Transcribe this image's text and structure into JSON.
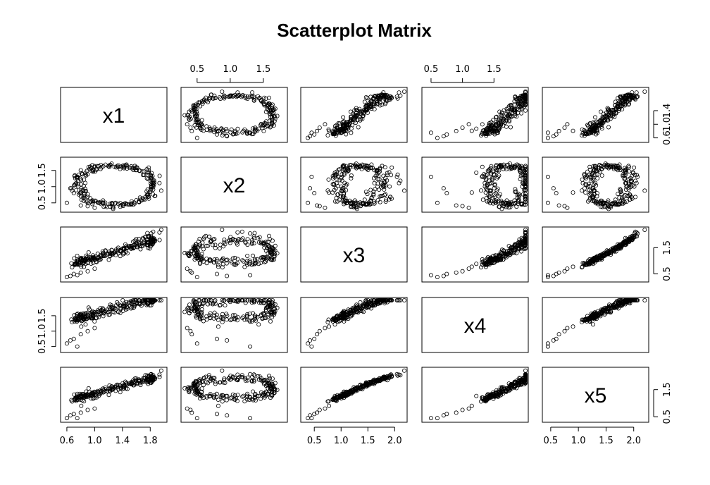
{
  "chart_data": {
    "type": "scatter",
    "title": "Scatterplot Matrix",
    "variables": [
      "x1",
      "x2",
      "x3",
      "x4",
      "x5"
    ],
    "ranges": {
      "x1": [
        0.55,
        2.0
      ],
      "x2": [
        0.3,
        1.82
      ],
      "x3": [
        0.3,
        2.18
      ],
      "x4": [
        0.4,
        2.0
      ],
      "x5": [
        0.4,
        2.22
      ]
    },
    "ticks": {
      "x1": {
        "values": [
          0.6,
          1.0,
          1.4,
          1.8
        ],
        "labels": [
          "0.6",
          "1.0",
          "1.4",
          "1.8"
        ],
        "side_values": [
          0.6,
          1.0,
          1.4
        ],
        "side_labels": [
          "0.6",
          "1.0",
          "1.4"
        ]
      },
      "x2": {
        "values": [
          0.5,
          1.0,
          1.5
        ],
        "labels": [
          "0.5",
          "1.0",
          "1.5"
        ]
      },
      "x3": {
        "values": [
          0.5,
          1.0,
          1.5,
          2.0
        ],
        "labels": [
          "0.5",
          "1.0",
          "1.5",
          "2.0"
        ],
        "side_values": [
          0.5,
          1.5
        ],
        "side_labels": [
          "0.5",
          "1.5"
        ]
      },
      "x4": {
        "values": [
          0.5,
          1.0,
          1.5
        ],
        "labels": [
          "0.5",
          "1.0",
          "1.5"
        ],
        "side_values": [
          0.5,
          1.5
        ],
        "side_labels": [
          "0.5",
          "1.5"
        ]
      },
      "x5": {
        "values": [
          0.5,
          1.0,
          1.5,
          2.0
        ],
        "labels": [
          "0.5",
          "1.0",
          "1.5",
          "2.0"
        ],
        "side_values": [
          0.5,
          1.5
        ],
        "side_labels": [
          "0.5",
          "1.5"
        ]
      }
    },
    "axes": {
      "top": [
        "x2",
        "x4"
      ],
      "bottom": [
        "x1",
        "x3",
        "x5"
      ],
      "left": [
        "x2",
        "x4"
      ],
      "right": [
        "x1",
        "x3",
        "x5"
      ]
    },
    "point_style": "open-circle",
    "series": [
      {
        "values": [
          [
            0.62,
            0.38
          ],
          [
            0.7,
            0.42
          ],
          [
            0.75,
            0.5
          ],
          [
            0.8,
            0.58
          ],
          [
            0.85,
            0.7
          ],
          [
            0.9,
            0.82
          ],
          [
            0.95,
            0.92
          ],
          [
            1.0,
            1.0
          ],
          [
            1.05,
            1.08
          ],
          [
            1.1,
            1.15
          ],
          [
            1.15,
            1.2
          ],
          [
            1.2,
            1.25
          ],
          [
            1.25,
            1.3
          ],
          [
            1.3,
            1.35
          ],
          [
            1.35,
            1.4
          ],
          [
            1.4,
            1.45
          ],
          [
            1.45,
            1.5
          ],
          [
            1.5,
            1.55
          ],
          [
            1.55,
            1.58
          ],
          [
            1.6,
            1.62
          ],
          [
            1.65,
            1.66
          ],
          [
            1.7,
            1.7
          ],
          [
            1.75,
            1.72
          ],
          [
            1.8,
            1.74
          ],
          [
            1.85,
            1.72
          ],
          [
            1.9,
            1.68
          ],
          [
            1.95,
            1.6
          ],
          [
            0.9,
            0.55
          ],
          [
            1.0,
            0.6
          ],
          [
            1.1,
            0.62
          ],
          [
            1.2,
            0.64
          ],
          [
            1.3,
            0.66
          ],
          [
            1.4,
            0.7
          ],
          [
            1.5,
            0.76
          ],
          [
            1.6,
            0.85
          ],
          [
            1.7,
            0.98
          ],
          [
            1.8,
            1.15
          ],
          [
            1.85,
            1.3
          ],
          [
            1.9,
            1.45
          ],
          [
            1.95,
            1.55
          ]
        ]
      }
    ]
  }
}
